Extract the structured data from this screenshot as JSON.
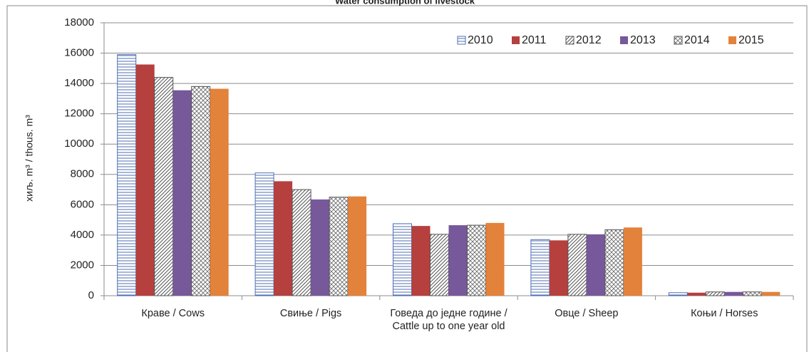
{
  "chart_data": {
    "type": "bar",
    "title": "Water consumption of livestock",
    "ylabel": "хиљ. m³ / thous. m³",
    "categories": [
      "Краве / Cows",
      "Свиње /  Pigs",
      "Говеда до једне године / Cattle up to one year old",
      "Овце / Sheep",
      "Коњи / Horses"
    ],
    "series": [
      {
        "name": "2010",
        "color": "#4f6fb3",
        "pattern": "horizontal",
        "values": [
          15900,
          8100,
          4750,
          3700,
          200
        ]
      },
      {
        "name": "2011",
        "color": "#b5403e",
        "pattern": "solid",
        "values": [
          15250,
          7550,
          4600,
          3650,
          200
        ]
      },
      {
        "name": "2012",
        "color": "#555555",
        "pattern": "diagonal",
        "values": [
          14400,
          7000,
          4050,
          4050,
          250
        ]
      },
      {
        "name": "2013",
        "color": "#77589a",
        "pattern": "solid",
        "values": [
          13550,
          6350,
          4650,
          4050,
          250
        ]
      },
      {
        "name": "2014",
        "color": "#555555",
        "pattern": "cross",
        "values": [
          13800,
          6500,
          4650,
          4350,
          250
        ]
      },
      {
        "name": "2015",
        "color": "#e3823b",
        "pattern": "solid",
        "values": [
          13650,
          6550,
          4800,
          4500,
          250
        ]
      }
    ],
    "ylim": [
      0,
      18000
    ],
    "yticks": [
      0,
      2000,
      4000,
      6000,
      8000,
      10000,
      12000,
      14000,
      16000,
      18000
    ],
    "grid": true,
    "legend": "top-right"
  }
}
